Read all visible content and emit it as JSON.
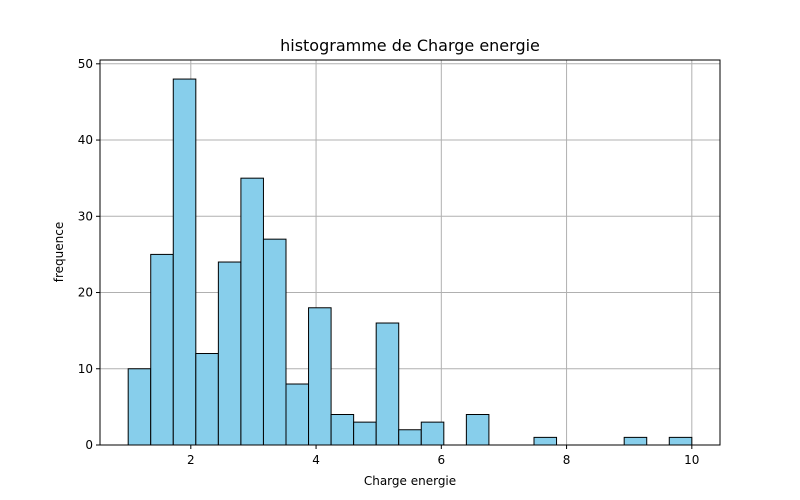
{
  "chart_data": {
    "type": "bar",
    "title": "histogramme de Charge energie",
    "xlabel": "Charge energie",
    "ylabel": "frequence",
    "xlim": [
      0.55,
      10.45
    ],
    "ylim": [
      0,
      50.5
    ],
    "grid": true,
    "bar_color": "#87ceeb",
    "edge_color": "#000000",
    "grid_color": "#b0b0b0",
    "xticks": [
      2,
      4,
      6,
      8,
      10
    ],
    "xtick_labels": [
      "2",
      "4",
      "6",
      "8",
      "10"
    ],
    "yticks": [
      0,
      10,
      20,
      30,
      40,
      50
    ],
    "ytick_labels": [
      "0",
      "10",
      "20",
      "30",
      "40",
      "50"
    ],
    "bins": [
      {
        "x0": 1.0,
        "x1": 1.36,
        "count": 10
      },
      {
        "x0": 1.36,
        "x1": 1.72,
        "count": 25
      },
      {
        "x0": 1.72,
        "x1": 2.08,
        "count": 48
      },
      {
        "x0": 2.08,
        "x1": 2.44,
        "count": 12
      },
      {
        "x0": 2.44,
        "x1": 2.8,
        "count": 24
      },
      {
        "x0": 2.8,
        "x1": 3.16,
        "count": 35
      },
      {
        "x0": 3.16,
        "x1": 3.52,
        "count": 27
      },
      {
        "x0": 3.52,
        "x1": 3.88,
        "count": 8
      },
      {
        "x0": 3.88,
        "x1": 4.24,
        "count": 18
      },
      {
        "x0": 4.24,
        "x1": 4.6,
        "count": 4
      },
      {
        "x0": 4.6,
        "x1": 4.96,
        "count": 3
      },
      {
        "x0": 4.96,
        "x1": 5.32,
        "count": 16
      },
      {
        "x0": 5.32,
        "x1": 5.68,
        "count": 2
      },
      {
        "x0": 5.68,
        "x1": 6.04,
        "count": 3
      },
      {
        "x0": 6.04,
        "x1": 6.4,
        "count": 0
      },
      {
        "x0": 6.4,
        "x1": 6.76,
        "count": 4
      },
      {
        "x0": 6.76,
        "x1": 7.12,
        "count": 0
      },
      {
        "x0": 7.12,
        "x1": 7.48,
        "count": 0
      },
      {
        "x0": 7.48,
        "x1": 7.84,
        "count": 1
      },
      {
        "x0": 7.84,
        "x1": 8.2,
        "count": 0
      },
      {
        "x0": 8.2,
        "x1": 8.56,
        "count": 0
      },
      {
        "x0": 8.56,
        "x1": 8.92,
        "count": 0
      },
      {
        "x0": 8.92,
        "x1": 9.28,
        "count": 1
      },
      {
        "x0": 9.28,
        "x1": 9.64,
        "count": 0
      },
      {
        "x0": 9.64,
        "x1": 10.0,
        "count": 1
      }
    ]
  }
}
